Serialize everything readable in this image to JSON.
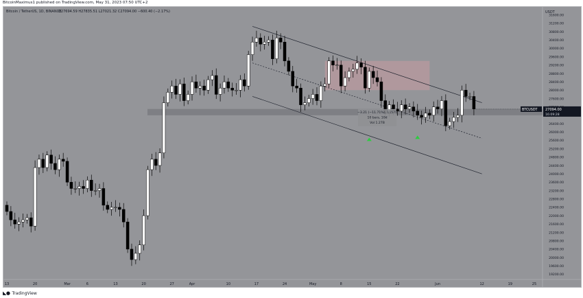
{
  "publisher_line": "BitcoinMaximus1 published on TradingView.com, May 31, 2023 07:50 UTC+2",
  "footer": {
    "logo_icon": "tradingview-logo-icon",
    "brand": "TradingView"
  },
  "chart_data": {
    "type": "candlestick",
    "title": "Bitcoin / TetherUS, 1D, BINANCE",
    "ohlc_header": {
      "O": "27694.59",
      "H": "27835.51",
      "L": "27021.32",
      "C": "27094.00",
      "change": "−600.40 (−2.17%)"
    },
    "currency": "USDT",
    "y_ticks": [
      "31600.00",
      "31200.00",
      "30800.00",
      "30400.00",
      "30000.00",
      "29600.00",
      "29200.00",
      "28800.00",
      "28400.00",
      "28000.00",
      "27600.00",
      "27200.00",
      "26800.00",
      "26400.00",
      "26000.00",
      "25600.00",
      "25200.00",
      "24800.00",
      "24400.00",
      "24000.00",
      "23600.00",
      "23200.00",
      "22800.00",
      "22400.00",
      "22000.00",
      "21600.00",
      "21200.00",
      "20800.00",
      "20400.00",
      "20000.00",
      "19600.00",
      "19200.00"
    ],
    "ylim": [
      18950,
      31950
    ],
    "x_ticks": [
      {
        "label": "13",
        "day": 0
      },
      {
        "label": "20",
        "day": 7
      },
      {
        "label": "Mar",
        "day": 15
      },
      {
        "label": "6",
        "day": 20
      },
      {
        "label": "13",
        "day": 27
      },
      {
        "label": "20",
        "day": 34
      },
      {
        "label": "27",
        "day": 41
      },
      {
        "label": "Apr",
        "day": 46
      },
      {
        "label": "10",
        "day": 55
      },
      {
        "label": "17",
        "day": 62
      },
      {
        "label": "24",
        "day": 69
      },
      {
        "label": "May",
        "day": 76
      },
      {
        "label": "8",
        "day": 83
      },
      {
        "label": "15",
        "day": 90
      },
      {
        "label": "22",
        "day": 97
      },
      {
        "label": "Jun",
        "day": 107
      },
      {
        "label": "12",
        "day": 118
      },
      {
        "label": "19",
        "day": 125
      },
      {
        "label": "25",
        "day": 131
      }
    ],
    "closes": [
      22200,
      21800,
      21600,
      21700,
      21800,
      21900,
      21500,
      24300,
      24700,
      24300,
      24900,
      24500,
      24200,
      24700,
      24600,
      23600,
      23300,
      23300,
      23400,
      23300,
      23700,
      23200,
      23200,
      23300,
      22500,
      22300,
      22400,
      22400,
      22300,
      21700,
      20400,
      19900,
      20200,
      20600,
      22000,
      24200,
      24700,
      24400,
      25000,
      27400,
      27900,
      28200,
      27800,
      28300,
      27500,
      27800,
      28400,
      28100,
      28200,
      28000,
      28500,
      28700,
      27800,
      28100,
      28400,
      28100,
      28000,
      28000,
      28500,
      28200,
      29700,
      30300,
      30500,
      30200,
      30300,
      30400,
      29500,
      30500,
      30300,
      29400,
      28900,
      28200,
      28100,
      27300,
      27400,
      27600,
      27800,
      27500,
      28200,
      28300,
      29400,
      29200,
      29200,
      28200,
      28600,
      28900,
      29000,
      29300,
      29100,
      28100,
      28900,
      28600,
      28400,
      27500,
      26900,
      27300,
      27100,
      27000,
      27300,
      27100,
      27200,
      27000,
      26800,
      26700,
      26900,
      26800,
      27200,
      27100,
      27500,
      26300,
      26500,
      26700,
      26800,
      28000,
      27700,
      27700,
      27100
    ],
    "annotations": [
      {
        "type": "resistance-box",
        "x0_day": 79,
        "x1_day": 105,
        "y0": 28000,
        "y1": 29400
      },
      {
        "type": "support-band",
        "y0": 26800,
        "y1": 27100
      },
      {
        "type": "channel-line",
        "name": "upper",
        "points": [
          [
            61,
            31050
          ],
          [
            118,
            27400
          ]
        ]
      },
      {
        "type": "channel-line",
        "name": "middle",
        "points": [
          [
            61,
            29300
          ],
          [
            118,
            25700
          ]
        ]
      },
      {
        "type": "channel-line",
        "name": "lower",
        "points": [
          [
            61,
            27700
          ],
          [
            118,
            24000
          ]
        ]
      },
      {
        "type": "arrow-up",
        "day": 90,
        "y": 25650
      },
      {
        "type": "arrow-up",
        "day": 102,
        "y": 25750
      }
    ],
    "measure_box": {
      "lines": [
        "−3.21 (−11.71%), 11571",
        "10 bars, 10d",
        "Vol 1.27B"
      ],
      "day": 92,
      "y": 26900
    },
    "last_price_tag": {
      "symbol": "BTCUSDT",
      "price": "27094.00",
      "countdown": "16:09:28"
    }
  }
}
